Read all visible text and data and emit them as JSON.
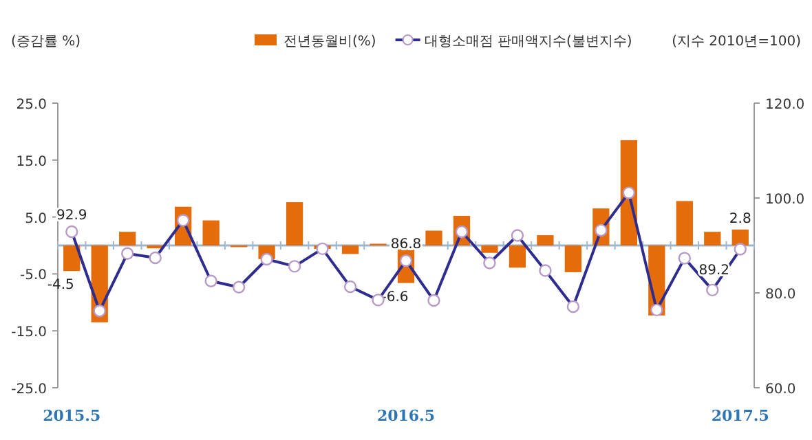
{
  "chart_data": {
    "type": "bar",
    "ylabel": "(증감률 %)",
    "y2label": "(지수 2010년=100)",
    "categories": [
      "2015.5",
      null,
      null,
      null,
      null,
      null,
      null,
      null,
      null,
      null,
      null,
      null,
      "2016.5",
      null,
      null,
      null,
      null,
      null,
      null,
      null,
      null,
      null,
      null,
      null,
      "2017.5"
    ],
    "series": [
      {
        "name": "전년동월비(%)",
        "color": "#e46c0a",
        "values": [
          -4.5,
          -13.5,
          2.4,
          -0.5,
          6.8,
          4.4,
          -0.3,
          -2.4,
          7.6,
          -0.6,
          -1.5,
          0.3,
          -6.6,
          2.6,
          5.2,
          -1.3,
          -3.9,
          1.8,
          -4.7,
          6.5,
          18.5,
          -12.3,
          7.8,
          2.4,
          2.8
        ],
        "value_labels": [
          "-4.5",
          null,
          null,
          null,
          null,
          null,
          null,
          null,
          null,
          null,
          null,
          null,
          "-6.6",
          null,
          null,
          null,
          null,
          null,
          null,
          null,
          null,
          null,
          null,
          null,
          "2.8"
        ]
      },
      {
        "name": "대형소매점 판매액지수(불변지수)",
        "type": "line",
        "axis": "y2",
        "color": "#2e2d8f",
        "marker": "circle",
        "values": [
          92.9,
          76.2,
          88.3,
          87.4,
          95.3,
          82.5,
          81.2,
          87.1,
          85.6,
          89.3,
          81.3,
          78.5,
          86.8,
          78.4,
          92.9,
          86.3,
          92.1,
          84.7,
          77.1,
          93.2,
          101.1,
          76.4,
          87.3,
          80.6,
          89.2
        ],
        "value_labels": [
          "92.9",
          null,
          null,
          null,
          null,
          null,
          null,
          null,
          null,
          null,
          null,
          null,
          "86.8",
          null,
          null,
          null,
          null,
          null,
          null,
          null,
          null,
          null,
          null,
          null,
          "89.2"
        ]
      }
    ],
    "ylim": [
      -25,
      25
    ],
    "yticks": [
      {
        "value": -25,
        "label": "-25.0"
      },
      {
        "value": -15,
        "label": "-15.0"
      },
      {
        "value": -5,
        "label": "-5.0"
      },
      {
        "value": 5,
        "label": "5.0"
      },
      {
        "value": 15,
        "label": "15.0"
      },
      {
        "value": 25,
        "label": "25.0"
      }
    ],
    "y2lim": [
      60,
      120
    ],
    "y2ticks": [
      {
        "value": 60,
        "label": "60.0"
      },
      {
        "value": 80,
        "label": "80.0"
      },
      {
        "value": 100,
        "label": "100.0"
      },
      {
        "value": 120,
        "label": "120.0"
      }
    ],
    "ref_lines": [
      {
        "axis": "y",
        "value": 0,
        "color": "#9fb6cc"
      }
    ],
    "legend": "top",
    "grid": false
  }
}
